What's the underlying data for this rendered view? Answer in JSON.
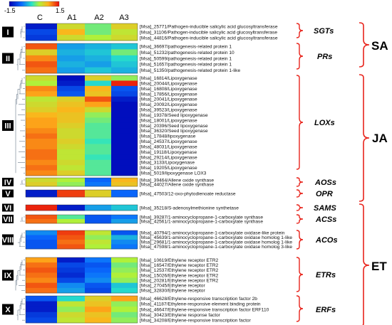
{
  "colorbar": {
    "min_label": "-1.5",
    "max_label": "1.5",
    "min": -1.5,
    "max": 1.5
  },
  "columns": [
    "C",
    "A1",
    "A2",
    "A3"
  ],
  "groups": [
    {
      "roman": "I",
      "rows": [
        {
          "label": "[Msa]_25771/Pathogen-inducible salicylic acid glucosyltransferase",
          "v": [
            -1.3,
            0.5,
            0.1,
            0.6
          ]
        },
        {
          "label": "[Msa]_31106/Pathogen-inducible salicylic acid glucosyltransferase",
          "v": [
            -1.0,
            0.8,
            0.1,
            0.4
          ]
        },
        {
          "label": "[Msa]_44816/Pathogen-inducible salicylic acid glucosyltransferase",
          "v": [
            -1.1,
            0.5,
            0.3,
            0.5
          ]
        }
      ]
    },
    {
      "roman": "II",
      "rows": [
        {
          "label": "[Msa]_36697/pathogenesis-related protein 1",
          "v": [
            1.2,
            -0.5,
            -0.4,
            -0.3
          ]
        },
        {
          "label": "[Msa]_51232/pathogenesis-related protein 10",
          "v": [
            0.6,
            -0.4,
            -0.3,
            0.1
          ]
        },
        {
          "label": "[Msa]_50599/pathogenesis-related protein 1",
          "v": [
            1.0,
            -0.5,
            -0.4,
            -0.2
          ]
        },
        {
          "label": "[Msa]_51657/pathogenesis-related protein 1",
          "v": [
            1.2,
            -0.4,
            -0.5,
            -0.3
          ]
        },
        {
          "label": "[Msa]_51350/pathogenesis-related protein 1-like",
          "v": [
            1.1,
            -0.5,
            -0.3,
            -0.4
          ]
        }
      ]
    },
    {
      "roman": "III",
      "rows": [
        {
          "label": "[Msa]_16814/Lipoxygenase",
          "v": [
            0.5,
            -1.4,
            0.6,
            0.2
          ]
        },
        {
          "label": "[Msa]_20044/Lipoxygenase",
          "v": [
            0.3,
            -1.3,
            -0.2,
            1.4
          ]
        },
        {
          "label": "[Msa]_16808/Lipoxygenase",
          "v": [
            1.0,
            -1.0,
            0.8,
            -0.9
          ]
        },
        {
          "label": "[Msa]_17856/Lipoxygenase",
          "v": [
            0.9,
            -0.9,
            0.7,
            -1.0
          ]
        },
        {
          "label": "[Msa]_20041/Lipoxygenase",
          "v": [
            0.4,
            0.6,
            1.2,
            -1.3
          ]
        },
        {
          "label": "[Msa]_20092/Lipoxygenase",
          "v": [
            0.5,
            0.7,
            0.9,
            -1.4
          ]
        },
        {
          "label": "[Msa]_39523/Lipoxygenase",
          "v": [
            0.6,
            0.8,
            0.5,
            -1.4
          ]
        },
        {
          "label": "[Msa]_19378/Seed lipoxygenase",
          "v": [
            0.8,
            0.7,
            0.2,
            -1.4
          ]
        },
        {
          "label": "[Msa]_18001/Lipoxygenase",
          "v": [
            0.9,
            0.7,
            0.1,
            -1.4
          ]
        },
        {
          "label": "[Msa]_20396/Seed lipoxygenase",
          "v": [
            0.9,
            0.6,
            0.0,
            -1.4
          ]
        },
        {
          "label": "[Msa]_36320/Seed lipoxygenase",
          "v": [
            1.0,
            0.5,
            0.0,
            -1.4
          ]
        },
        {
          "label": "[Msa]_17848/lipoxygenase",
          "v": [
            1.1,
            0.5,
            0.0,
            -1.4
          ]
        },
        {
          "label": "[Msa]_24537/Lipoxygenase",
          "v": [
            1.0,
            0.6,
            -0.1,
            -1.4
          ]
        },
        {
          "label": "[Msa]_48031/Lipoxygenase",
          "v": [
            1.0,
            0.5,
            0.0,
            -1.4
          ]
        },
        {
          "label": "[Msa]_19118/Lipoxygenase",
          "v": [
            1.1,
            0.4,
            0.0,
            -1.4
          ]
        },
        {
          "label": "[Msa]_29214/Lipoxygenase",
          "v": [
            1.1,
            0.4,
            -0.1,
            -1.4
          ]
        },
        {
          "label": "[Msa]_3133/Lipoxygenase",
          "v": [
            1.0,
            0.5,
            0.0,
            -1.4
          ]
        },
        {
          "label": "[Msa]_19205/Lipoxygenase",
          "v": [
            1.1,
            0.4,
            0.0,
            -1.4
          ]
        },
        {
          "label": "[Msa]_5019/lipoxygenase LOX3",
          "v": [
            1.0,
            0.6,
            0.0,
            -1.4
          ]
        }
      ]
    },
    {
      "roman": "IV",
      "rows": [
        {
          "label": "[Msa]_39464/Allene oxide synthase",
          "v": [
            0.5,
            0.3,
            -0.8,
            0.8
          ]
        },
        {
          "label": "[Msa]_44027/Allene oxide synthase",
          "v": [
            0.6,
            0.2,
            -0.7,
            0.7
          ]
        }
      ]
    },
    {
      "roman": "V",
      "rows": [
        {
          "label": "[Msa]_47503/12-oxo-phytodienoate reductase",
          "v": [
            -1.3,
            1.3,
            0.6,
            -0.8
          ]
        }
      ]
    },
    {
      "roman": "VI",
      "rows": [
        {
          "label": "[Msa]_35218/S-adenosylmethionine synthetase",
          "v": [
            1.4,
            -1.3,
            -0.5,
            -0.3
          ]
        }
      ]
    },
    {
      "roman": "VII",
      "rows": [
        {
          "label": "[Msa]_39287/1-aminocyclopropane-1-carboxylate synthase",
          "v": [
            1.2,
            0.0,
            -0.9,
            -0.7
          ]
        },
        {
          "label": "[Msa]_42561/1-aminocyclopropane-1-carboxylate synthase",
          "v": [
            1.1,
            0.3,
            -0.9,
            -0.5
          ]
        }
      ]
    },
    {
      "roman": "VIII",
      "rows": [
        {
          "label": "[Msa]_40794/1-aminocyclopropane-1-carboxylate oxidase-like protein",
          "v": [
            -0.6,
            1.3,
            0.4,
            -0.9
          ]
        },
        {
          "label": "[Msa]_45639/1-aminocyclopropane-1-carboxylate oxidase homolog 1-like",
          "v": [
            -0.8,
            1.2,
            0.2,
            -0.4
          ]
        },
        {
          "label": "[Msa]_29681/1-aminocyclopropane-1-carboxylate oxidase homolog 1-like",
          "v": [
            -0.9,
            1.1,
            0.4,
            -0.6
          ]
        },
        {
          "label": "[Msa]_47598/1-aminocyclopropane-1-carboxylate oxidase homolog 3-like",
          "v": [
            -0.9,
            1.2,
            0.3,
            -0.7
          ]
        }
      ]
    },
    {
      "roman": "IX",
      "rows": [
        {
          "label": "[Msa]_10619/Ethylene receptor ETR2",
          "v": [
            0.9,
            -1.3,
            -0.7,
            0.3
          ]
        },
        {
          "label": "[Msa]_16547/Ethylene receptor ETR2",
          "v": [
            1.1,
            -1.0,
            -0.9,
            0.1
          ]
        },
        {
          "label": "[Msa]_12537/Ethylene receptor ETR2",
          "v": [
            1.2,
            -1.1,
            -0.8,
            0.2
          ]
        },
        {
          "label": "[Msa]_15026/Ethylene receptor ETR2",
          "v": [
            1.1,
            -1.2,
            -0.7,
            0.3
          ]
        },
        {
          "label": "[Msa]_20281/Ethylene receptor ETR2",
          "v": [
            1.0,
            -1.0,
            -0.6,
            0.2
          ]
        },
        {
          "label": "[Msa]_27045/Ethylene receptor",
          "v": [
            1.2,
            -0.6,
            -0.9,
            -0.3
          ]
        },
        {
          "label": "[Msa]_32830/Ethylene receptor",
          "v": [
            1.1,
            -0.5,
            -1.0,
            -0.2
          ]
        }
      ]
    },
    {
      "roman": "X",
      "rows": [
        {
          "label": "[Msa]_46628/Ethylene-responsive transcription factor 2b",
          "v": [
            -0.9,
            -0.2,
            0.6,
            0.9
          ]
        },
        {
          "label": "[Msa]_41187/Ethylene-responsive element binding protein",
          "v": [
            -1.3,
            0.4,
            0.7,
            0.2
          ]
        },
        {
          "label": "[Msa]_46647/Ethylene-responsive transcription factor ERF110",
          "v": [
            -1.3,
            0.2,
            0.9,
            0.3
          ]
        },
        {
          "label": "[Msa]_30423/Ethylene response factor",
          "v": [
            -1.1,
            0.5,
            0.7,
            0.1
          ]
        },
        {
          "label": "[Msa]_34208/Ethylene-responsive transcription factor",
          "v": [
            -1.0,
            0.4,
            0.8,
            0.2
          ]
        }
      ]
    }
  ],
  "families": [
    "SGTs",
    "PRs",
    "LOXs",
    "AOSs",
    "OPR",
    "SAMS",
    "ACSs",
    "ACOs",
    "ETRs",
    "ERFs"
  ],
  "pathways": [
    "SA",
    "JA",
    "ET"
  ],
  "colors": {
    "bracket_red": "#e8241c",
    "text_black": "#000000",
    "label_box": "#000000"
  }
}
